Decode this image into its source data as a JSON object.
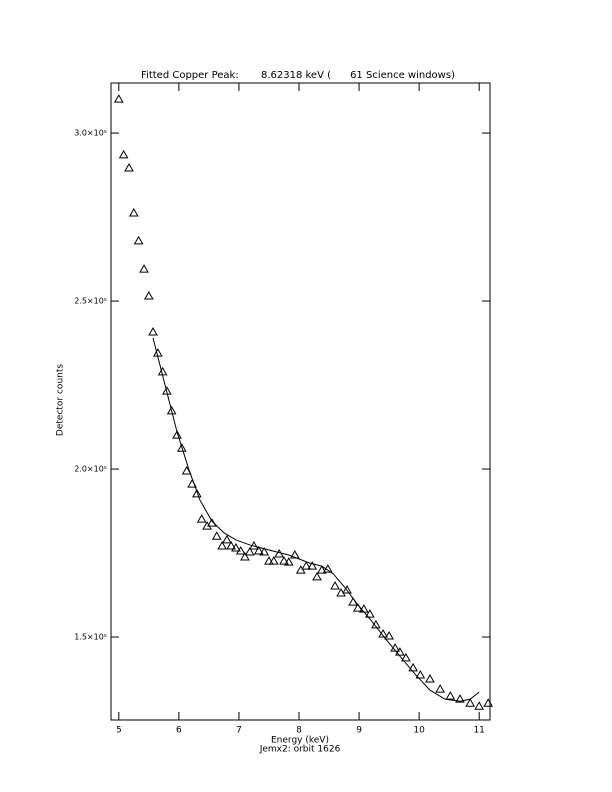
{
  "chart_data": {
    "type": "scatter",
    "title": "Fitted Copper Peak:       8.62318 keV (      61 Science windows)",
    "x_label": "Energy (keV)",
    "subtitle": "Jemx2: orbit 1626",
    "y_label": "Detector counts",
    "xlim": [
      4.87,
      11.18
    ],
    "ylim": [
      125300,
      314900
    ],
    "xticks": [
      5,
      6,
      7,
      8,
      9,
      10,
      11
    ],
    "yticks": [
      {
        "value": 150000,
        "label": "1.5×10⁵"
      },
      {
        "value": 200000,
        "label": "2.0×10⁵"
      },
      {
        "value": 250000,
        "label": "2.5×10⁵"
      },
      {
        "value": 300000,
        "label": "3.0×10⁵"
      }
    ],
    "color": "#000000",
    "series": [
      {
        "type": "scatter",
        "marker": "triangle",
        "x": [
          5.0,
          5.08,
          5.17,
          5.25,
          5.33,
          5.42,
          5.5,
          5.57,
          5.65,
          5.73,
          5.8,
          5.88,
          5.97,
          6.05,
          6.13,
          6.22,
          6.3,
          6.38,
          6.47,
          6.55,
          6.63,
          6.72,
          6.8,
          6.87,
          6.95,
          7.03,
          7.1,
          7.18,
          7.25,
          7.33,
          7.42,
          7.5,
          7.58,
          7.67,
          7.75,
          7.83,
          7.93,
          8.03,
          8.12,
          8.22,
          8.3,
          8.38,
          8.48,
          8.6,
          8.7,
          8.8,
          8.9,
          8.98,
          9.08,
          9.18,
          9.28,
          9.4,
          9.5,
          9.6,
          9.68,
          9.78,
          9.9,
          10.02,
          10.18,
          10.35,
          10.52,
          10.68,
          10.85,
          11.0,
          11.15
        ],
        "values": [
          310100,
          293500,
          289600,
          276200,
          267900,
          259500,
          251500,
          240800,
          234500,
          228900,
          223200,
          217300,
          210100,
          206200,
          199400,
          195500,
          192600,
          185100,
          183000,
          183900,
          180000,
          177100,
          178900,
          177100,
          176500,
          175600,
          173800,
          175300,
          177100,
          175600,
          175300,
          172600,
          172600,
          174700,
          172600,
          172300,
          174400,
          169900,
          171100,
          171100,
          167900,
          169900,
          170200,
          165200,
          163100,
          164000,
          160400,
          158600,
          158300,
          156800,
          153600,
          150900,
          150300,
          146700,
          145500,
          143800,
          140800,
          138700,
          137500,
          134500,
          132400,
          131500,
          130300,
          129400,
          130300
        ]
      },
      {
        "type": "line",
        "x": [
          5.57,
          5.77,
          5.97,
          6.17,
          6.35,
          6.55,
          6.75,
          6.95,
          7.18,
          7.5,
          7.83,
          8.18,
          8.38,
          8.57,
          8.77,
          8.97,
          9.18,
          9.43,
          9.68,
          9.93,
          10.18,
          10.43,
          10.68,
          10.85,
          11.0
        ],
        "values": [
          239000,
          225000,
          211000,
          199700,
          190800,
          184500,
          181000,
          178900,
          177400,
          175900,
          174400,
          172000,
          171100,
          168800,
          164600,
          159800,
          155400,
          149700,
          144300,
          139000,
          134200,
          131500,
          130900,
          131500,
          133600
        ]
      }
    ]
  }
}
